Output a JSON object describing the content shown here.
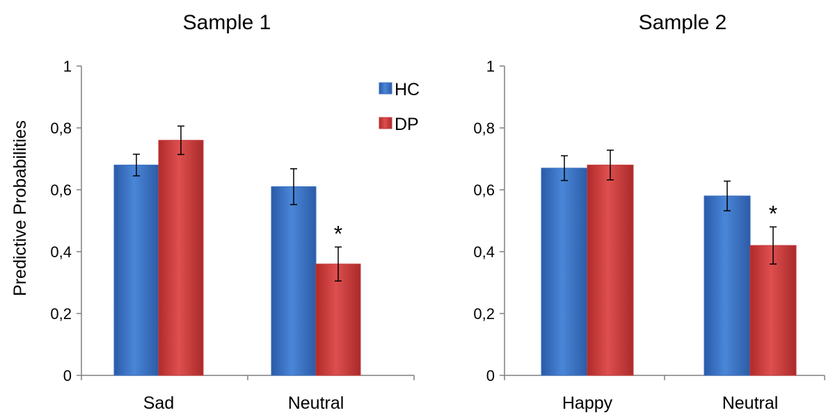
{
  "colors": {
    "HC": "#3a6fbf",
    "DP": "#c83b3b"
  },
  "chart_data": [
    {
      "type": "bar",
      "title": "Sample 1",
      "ylabel": "Predictive Probabilities",
      "xlabel": "",
      "ylim": [
        0,
        1
      ],
      "yticks": [
        "0",
        "0,2",
        "0,4",
        "0,6",
        "0,8",
        "1"
      ],
      "categories": [
        "Sad",
        "Neutral"
      ],
      "series": [
        {
          "name": "HC",
          "values": [
            0.68,
            0.61
          ],
          "errors": [
            0.035,
            0.058
          ]
        },
        {
          "name": "DP",
          "values": [
            0.76,
            0.36
          ],
          "errors": [
            0.046,
            0.055
          ]
        }
      ],
      "legend": {
        "position": "top-right",
        "entries": [
          "HC",
          "DP"
        ]
      },
      "annotations": [
        {
          "text": "*",
          "category": "Neutral",
          "series": "DP"
        }
      ]
    },
    {
      "type": "bar",
      "title": "Sample 2",
      "ylabel": "",
      "xlabel": "",
      "ylim": [
        0,
        1
      ],
      "yticks": [
        "0",
        "0,2",
        "0,4",
        "0,6",
        "0,8",
        "1"
      ],
      "categories": [
        "Happy",
        "Neutral"
      ],
      "series": [
        {
          "name": "HC",
          "values": [
            0.67,
            0.58
          ],
          "errors": [
            0.04,
            0.048
          ]
        },
        {
          "name": "DP",
          "values": [
            0.68,
            0.42
          ],
          "errors": [
            0.048,
            0.06
          ]
        }
      ],
      "annotations": [
        {
          "text": "*",
          "category": "Neutral",
          "series": "DP"
        }
      ]
    }
  ]
}
